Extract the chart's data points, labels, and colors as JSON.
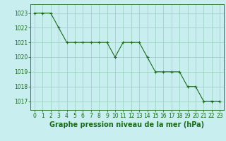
{
  "x": [
    0,
    1,
    2,
    3,
    4,
    5,
    6,
    7,
    8,
    9,
    10,
    11,
    12,
    13,
    14,
    15,
    16,
    17,
    18,
    19,
    20,
    21,
    22,
    23
  ],
  "y": [
    1023,
    1023,
    1023,
    1022,
    1021,
    1021,
    1021,
    1021,
    1021,
    1021,
    1020,
    1021,
    1021,
    1021,
    1020,
    1019,
    1019,
    1019,
    1019,
    1018,
    1018,
    1017,
    1017,
    1017
  ],
  "line_color": "#1a6b1a",
  "marker_color": "#1a6b1a",
  "bg_color": "#c8eef0",
  "grid_color": "#99ccbb",
  "title": "Graphe pression niveau de la mer (hPa)",
  "xlabel_ticks": [
    0,
    1,
    2,
    3,
    4,
    5,
    6,
    7,
    8,
    9,
    10,
    11,
    12,
    13,
    14,
    15,
    16,
    17,
    18,
    19,
    20,
    21,
    22,
    23
  ],
  "ylim": [
    1016.4,
    1023.6
  ],
  "yticks": [
    1017,
    1018,
    1019,
    1020,
    1021,
    1022,
    1023
  ],
  "title_color": "#1a6b1a",
  "title_fontsize": 7.0,
  "tick_fontsize": 5.5,
  "tick_color": "#1a6b1a",
  "axis_color": "#1a6b1a",
  "xlim": [
    -0.5,
    23.5
  ]
}
